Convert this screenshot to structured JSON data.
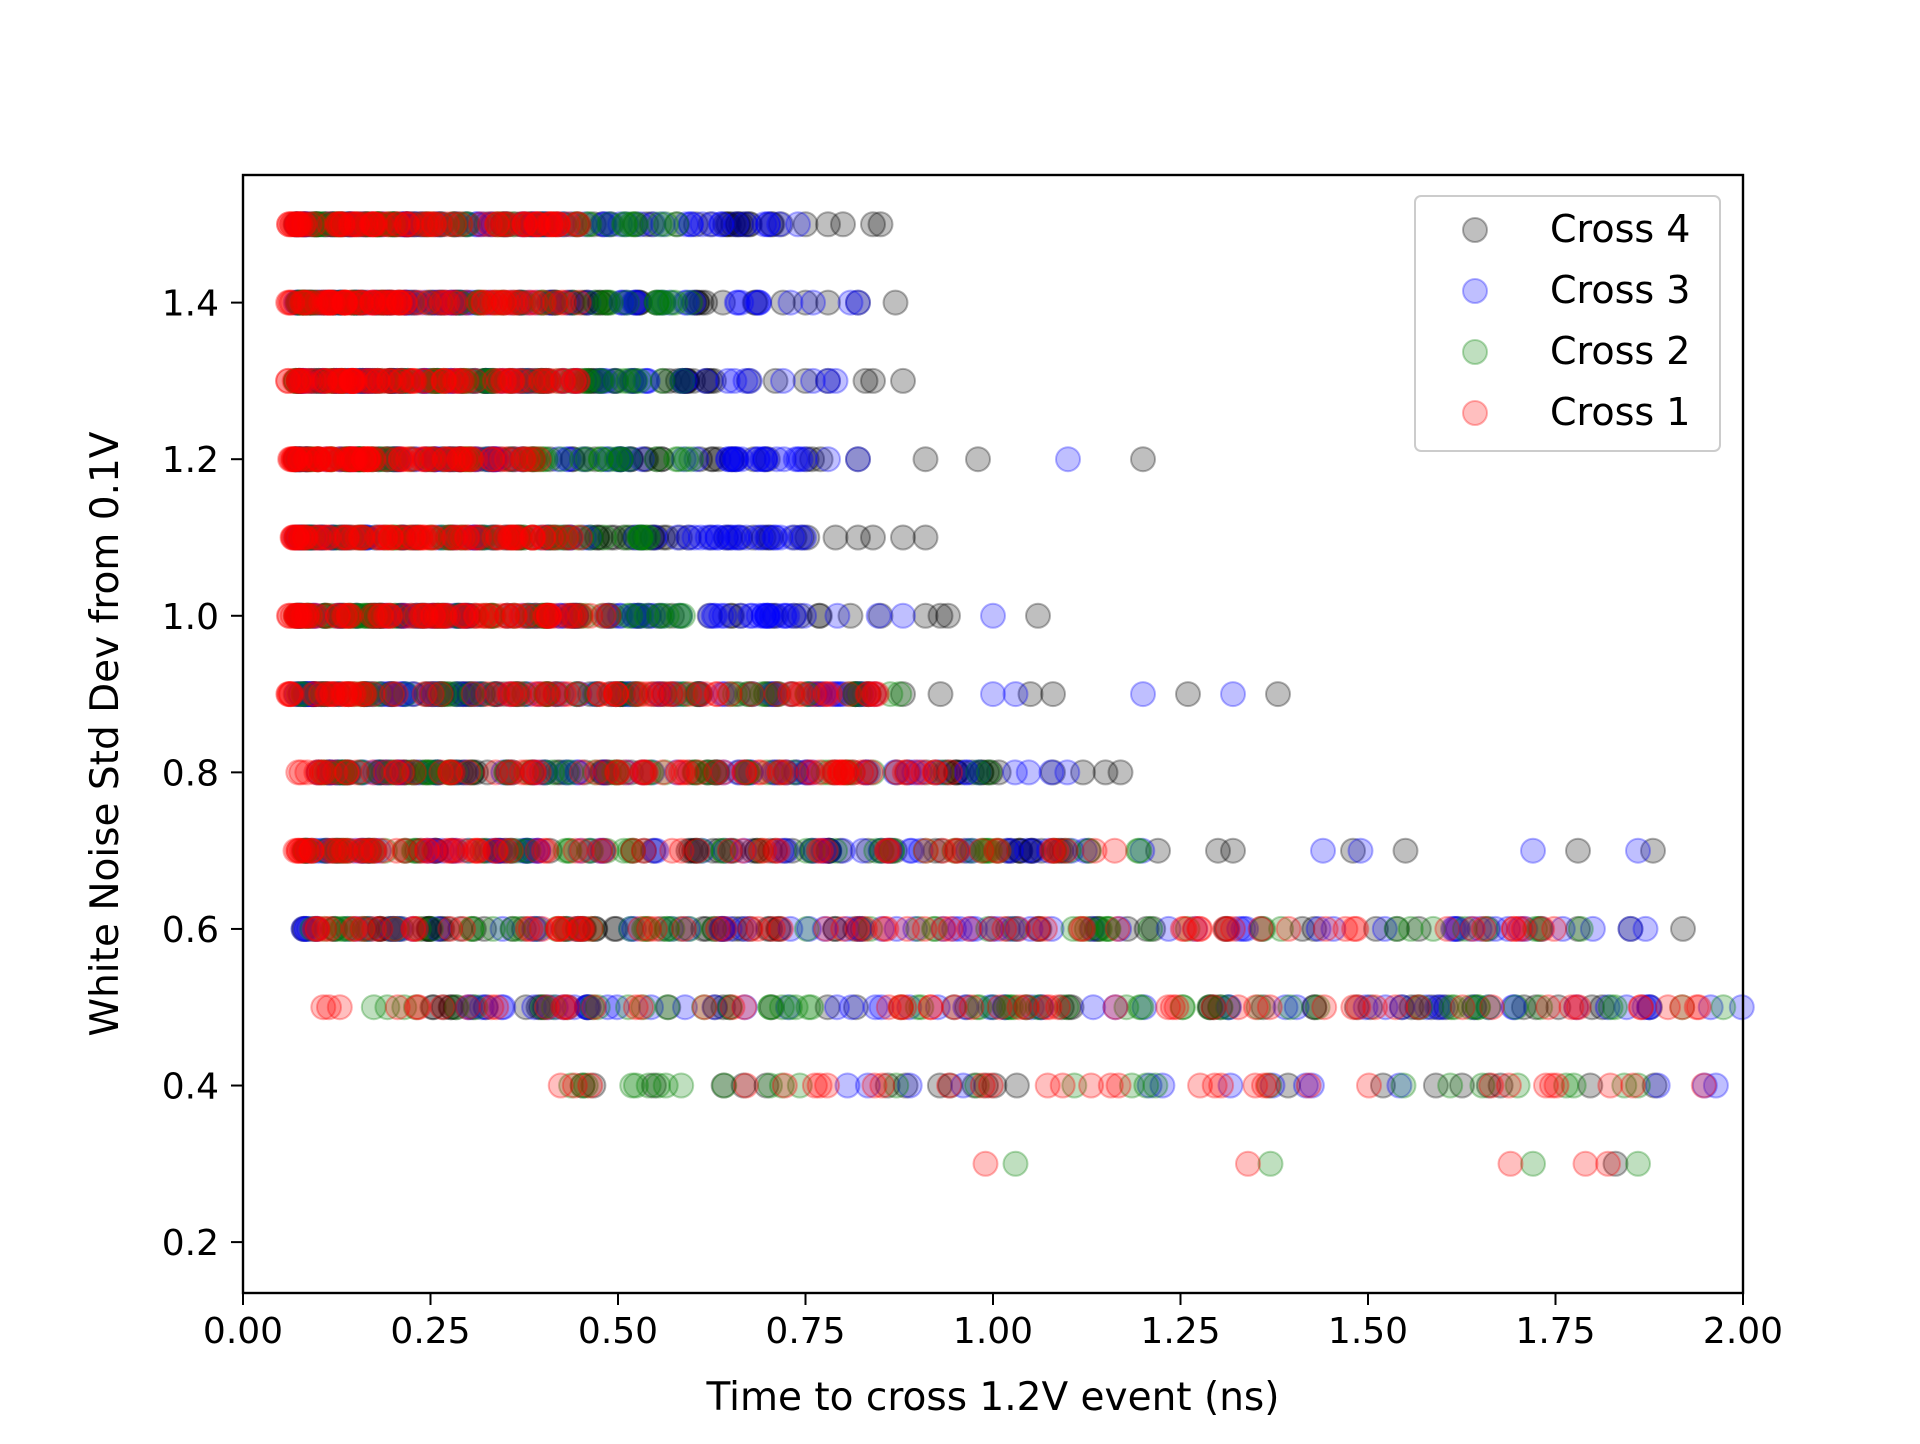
{
  "chart_data": {
    "type": "scatter",
    "title": "",
    "xlabel": "Time to cross 1.2V event (ns)",
    "ylabel": "White Noise Std Dev from 0.1V",
    "xlim": [
      0.0,
      2.0
    ],
    "ylim": [
      0.135,
      1.563
    ],
    "xticks": [
      "0.00",
      "0.25",
      "0.50",
      "0.75",
      "1.00",
      "1.25",
      "1.50",
      "1.75",
      "2.00"
    ],
    "yticks": [
      "0.2",
      "0.4",
      "0.6",
      "0.8",
      "1.0",
      "1.2",
      "1.4"
    ],
    "grid": false,
    "legend_position": "top-right",
    "marker_alpha": 0.25,
    "series": [
      {
        "name": "Cross 4",
        "color": "#000000",
        "points": [
          {
            "y": 1.5,
            "range": [
              0.07,
              0.72
            ],
            "count": 70,
            "extra": [
              0.75,
              0.78,
              0.8,
              0.84,
              0.85
            ]
          },
          {
            "y": 1.4,
            "range": [
              0.07,
              0.7
            ],
            "count": 70,
            "extra": [
              0.72,
              0.75,
              0.78,
              0.82,
              0.87
            ]
          },
          {
            "y": 1.3,
            "range": [
              0.07,
              0.68
            ],
            "count": 70,
            "extra": [
              0.71,
              0.75,
              0.78,
              0.83,
              0.84,
              0.88
            ]
          },
          {
            "y": 1.2,
            "range": [
              0.07,
              0.8
            ],
            "count": 70,
            "extra": [
              0.82,
              0.91,
              0.98,
              1.2
            ]
          },
          {
            "y": 1.1,
            "range": [
              0.07,
              0.76
            ],
            "count": 70,
            "extra": [
              0.79,
              0.82,
              0.84,
              0.88,
              0.91
            ]
          },
          {
            "y": 1.0,
            "range": [
              0.07,
              0.78
            ],
            "count": 70,
            "extra": [
              0.81,
              0.85,
              0.91,
              0.93,
              0.94,
              1.06
            ]
          },
          {
            "y": 0.9,
            "range": [
              0.07,
              0.86
            ],
            "count": 70,
            "extra": [
              0.88,
              0.93,
              1.05,
              1.08,
              1.26,
              1.38
            ]
          },
          {
            "y": 0.8,
            "range": [
              0.1,
              1.05
            ],
            "count": 70,
            "extra": [
              1.08,
              1.12,
              1.15,
              1.17
            ]
          },
          {
            "y": 0.7,
            "range": [
              0.08,
              1.15
            ],
            "count": 70,
            "extra": [
              1.22,
              1.3,
              1.32,
              1.48,
              1.55,
              1.78,
              1.88
            ]
          },
          {
            "y": 0.6,
            "range": [
              0.08,
              1.6
            ],
            "count": 70,
            "extra": [
              1.62,
              1.66,
              1.78,
              1.85,
              1.92
            ]
          },
          {
            "y": 0.5,
            "range": [
              0.25,
              2.0
            ],
            "count": 50
          },
          {
            "y": 0.4,
            "range": [
              0.45,
              2.0
            ],
            "count": 22
          },
          {
            "y": 0.3,
            "range": [
              1.83,
              1.83
            ],
            "count": 1
          }
        ]
      },
      {
        "name": "Cross 3",
        "color": "#0000ff",
        "points": [
          {
            "y": 1.5,
            "range": [
              0.07,
              0.72
            ],
            "count": 70,
            "extra": [
              0.67,
              0.7,
              0.74
            ]
          },
          {
            "y": 1.4,
            "range": [
              0.07,
              0.7
            ],
            "count": 70,
            "extra": [
              0.73,
              0.76,
              0.81,
              0.82
            ]
          },
          {
            "y": 1.3,
            "range": [
              0.07,
              0.7
            ],
            "count": 70,
            "extra": [
              0.72,
              0.76,
              0.78,
              0.79
            ]
          },
          {
            "y": 1.2,
            "range": [
              0.07,
              0.75
            ],
            "count": 70,
            "extra": [
              0.78,
              0.82,
              1.1
            ]
          },
          {
            "y": 1.1,
            "range": [
              0.07,
              0.76
            ],
            "count": 70
          },
          {
            "y": 1.0,
            "range": [
              0.07,
              0.85
            ],
            "count": 70,
            "extra": [
              0.88,
              1.0
            ]
          },
          {
            "y": 0.9,
            "range": [
              0.07,
              0.85
            ],
            "count": 70,
            "extra": [
              1.0,
              1.03,
              1.2,
              1.32
            ]
          },
          {
            "y": 0.8,
            "range": [
              0.1,
              1.1
            ],
            "count": 70
          },
          {
            "y": 0.7,
            "range": [
              0.08,
              1.25
            ],
            "count": 70,
            "extra": [
              1.44,
              1.49,
              1.72,
              1.86
            ]
          },
          {
            "y": 0.6,
            "range": [
              0.08,
              1.8
            ],
            "count": 70,
            "extra": [
              1.85,
              1.87
            ]
          },
          {
            "y": 0.5,
            "range": [
              0.3,
              2.0
            ],
            "count": 60
          },
          {
            "y": 0.4,
            "range": [
              0.8,
              2.0
            ],
            "count": 14
          }
        ]
      },
      {
        "name": "Cross 2",
        "color": "#008000",
        "points": [
          {
            "y": 1.5,
            "range": [
              0.07,
              0.6
            ],
            "count": 60
          },
          {
            "y": 1.4,
            "range": [
              0.07,
              0.6
            ],
            "count": 60
          },
          {
            "y": 1.3,
            "range": [
              0.07,
              0.6
            ],
            "count": 60
          },
          {
            "y": 1.2,
            "range": [
              0.07,
              0.6
            ],
            "count": 60
          },
          {
            "y": 1.1,
            "range": [
              0.07,
              0.55
            ],
            "count": 60
          },
          {
            "y": 1.0,
            "range": [
              0.07,
              0.6
            ],
            "count": 60
          },
          {
            "y": 0.9,
            "range": [
              0.07,
              0.9
            ],
            "count": 60
          },
          {
            "y": 0.8,
            "range": [
              0.1,
              1.0
            ],
            "count": 60
          },
          {
            "y": 0.7,
            "range": [
              0.08,
              1.2
            ],
            "count": 60
          },
          {
            "y": 0.6,
            "range": [
              0.08,
              1.85
            ],
            "count": 60
          },
          {
            "y": 0.5,
            "range": [
              0.15,
              2.0
            ],
            "count": 60
          },
          {
            "y": 0.4,
            "range": [
              0.43,
              1.97
            ],
            "count": 28
          },
          {
            "y": 0.3,
            "range": [
              1.03,
              1.03
            ],
            "count": 1,
            "extra": [
              1.37,
              1.72,
              1.86
            ]
          }
        ]
      },
      {
        "name": "Cross 1",
        "color": "#ff0000",
        "points": [
          {
            "y": 1.5,
            "range": [
              0.06,
              0.45
            ],
            "count": 80
          },
          {
            "y": 1.4,
            "range": [
              0.06,
              0.45
            ],
            "count": 80
          },
          {
            "y": 1.3,
            "range": [
              0.06,
              0.45
            ],
            "count": 80
          },
          {
            "y": 1.2,
            "range": [
              0.06,
              0.4
            ],
            "count": 80
          },
          {
            "y": 1.1,
            "range": [
              0.06,
              0.45
            ],
            "count": 80
          },
          {
            "y": 1.0,
            "range": [
              0.06,
              0.5
            ],
            "count": 80
          },
          {
            "y": 0.9,
            "range": [
              0.06,
              0.85
            ],
            "count": 80
          },
          {
            "y": 0.8,
            "range": [
              0.07,
              0.95
            ],
            "count": 80
          },
          {
            "y": 0.7,
            "range": [
              0.07,
              1.2
            ],
            "count": 80
          },
          {
            "y": 0.6,
            "range": [
              0.07,
              1.75
            ],
            "count": 80
          },
          {
            "y": 0.5,
            "range": [
              0.1,
              2.0
            ],
            "count": 60
          },
          {
            "y": 0.4,
            "range": [
              0.42,
              2.0
            ],
            "count": 34
          },
          {
            "y": 0.3,
            "range": [
              0.99,
              0.99
            ],
            "count": 1,
            "extra": [
              1.34,
              1.69,
              1.79,
              1.82
            ]
          }
        ]
      }
    ]
  }
}
